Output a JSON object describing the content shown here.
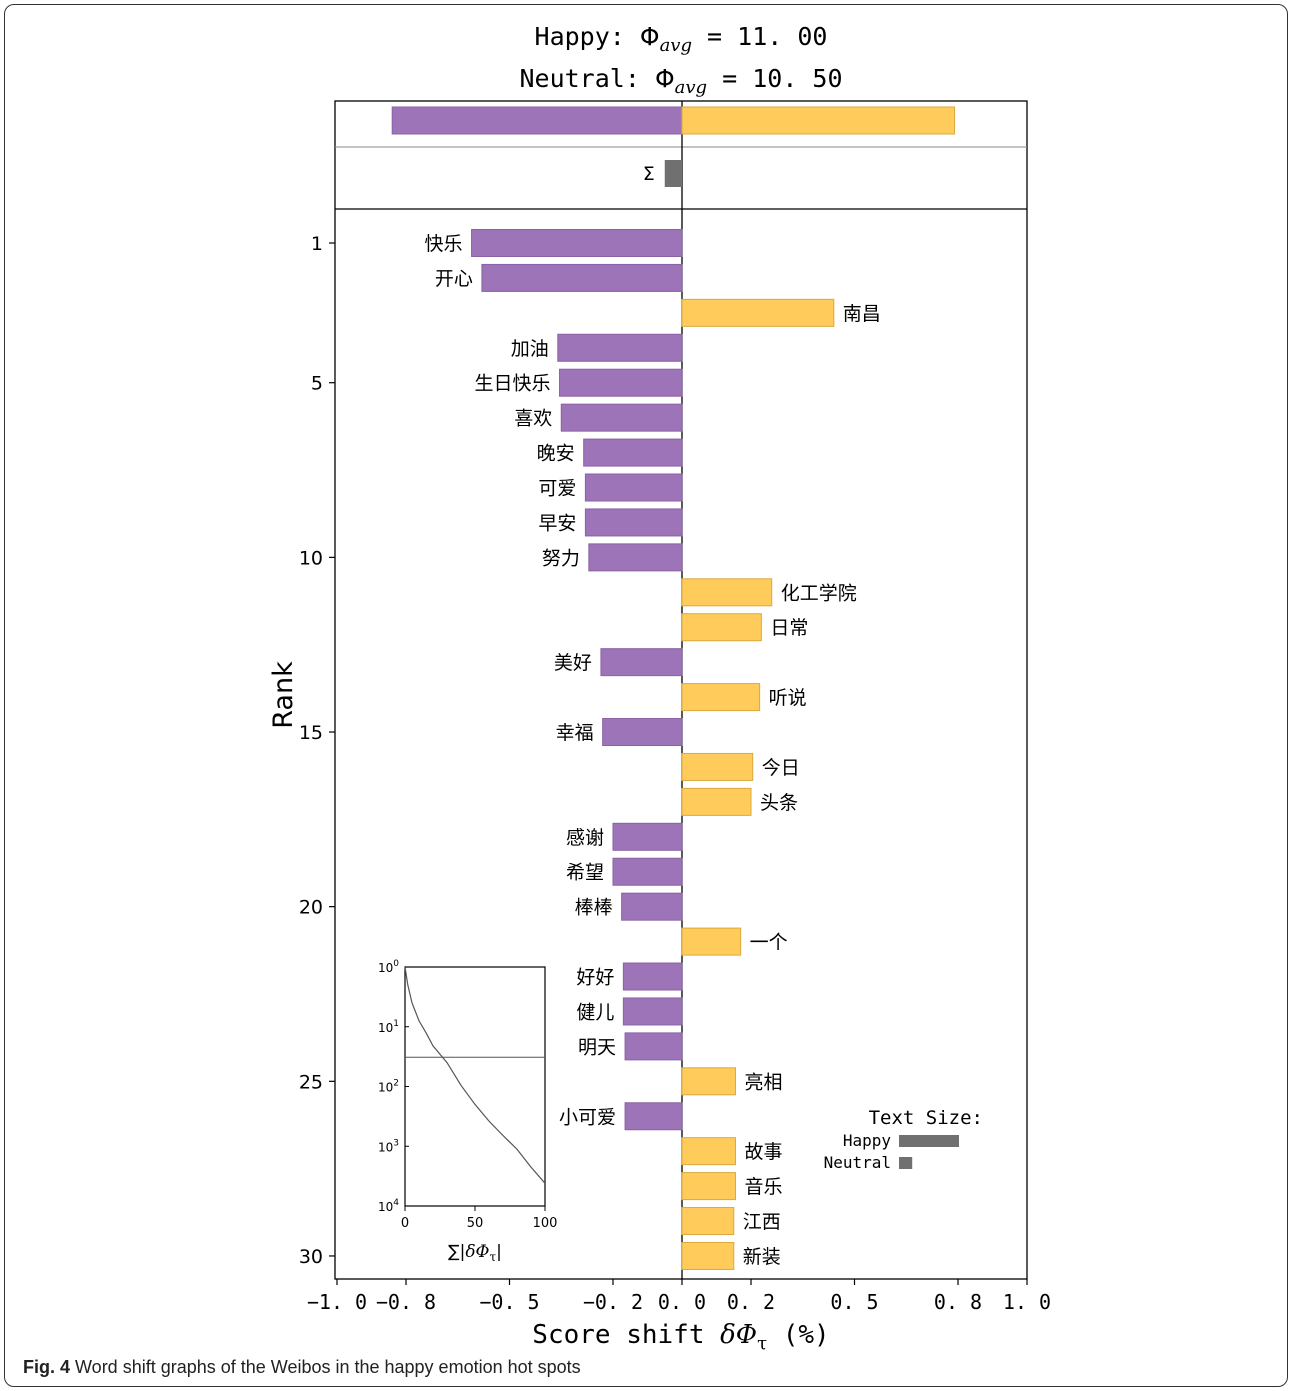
{
  "title_line1": {
    "prefix": "Happy:",
    "phi": "Φ",
    "sub": "avg",
    "eq": "= 11. 00"
  },
  "title_line2": {
    "prefix": "Neutral:",
    "phi": "Φ",
    "sub": "avg",
    "eq": "= 10. 50"
  },
  "caption": {
    "label": "Fig. 4",
    "text": " Word shift graphs of the Weibos in the happy emotion hot spots"
  },
  "colors": {
    "negative": "#9e74b8",
    "positive": "#ffcc5c",
    "sum": "#707070"
  },
  "chart_data": {
    "type": "bar",
    "orientation": "horizontal",
    "xlabel": "Score shift δΦτ (%)",
    "xlabel_parts": {
      "pre": "Score shift ",
      "sym": "δΦ",
      "sub": "τ",
      "post": " (%)"
    },
    "ylabel": "Rank",
    "xlim": [
      -1.0,
      1.0
    ],
    "xticks": [
      -1.0,
      -0.8,
      -0.5,
      -0.2,
      0.0,
      0.2,
      0.5,
      0.8,
      1.0
    ],
    "xtick_labels": [
      "−1. 0",
      "−0. 8",
      "−0. 5",
      "−0. 2",
      "0. 0",
      "0. 2",
      "0. 5",
      "0. 8",
      "1. 0"
    ],
    "yticks": [
      1,
      5,
      10,
      15,
      20,
      25,
      30
    ],
    "totals": {
      "negative": -0.84,
      "positive": 0.79
    },
    "sum": {
      "label": "Σ",
      "value": -0.05
    },
    "words": [
      {
        "rank": 1,
        "word": "快乐",
        "value": -0.61
      },
      {
        "rank": 2,
        "word": "开心",
        "value": -0.58
      },
      {
        "rank": 3,
        "word": "南昌",
        "value": 0.44
      },
      {
        "rank": 4,
        "word": "加油",
        "value": -0.36
      },
      {
        "rank": 5,
        "word": "生日快乐",
        "value": -0.355
      },
      {
        "rank": 6,
        "word": "喜欢",
        "value": -0.35
      },
      {
        "rank": 7,
        "word": "晚安",
        "value": -0.285
      },
      {
        "rank": 8,
        "word": "可爱",
        "value": -0.28
      },
      {
        "rank": 9,
        "word": "早安",
        "value": -0.28
      },
      {
        "rank": 10,
        "word": "努力",
        "value": -0.27
      },
      {
        "rank": 11,
        "word": "化工学院",
        "value": 0.26
      },
      {
        "rank": 12,
        "word": "日常",
        "value": 0.23
      },
      {
        "rank": 13,
        "word": "美好",
        "value": -0.235
      },
      {
        "rank": 14,
        "word": "听说",
        "value": 0.225
      },
      {
        "rank": 15,
        "word": "幸福",
        "value": -0.23
      },
      {
        "rank": 16,
        "word": "今日",
        "value": 0.205
      },
      {
        "rank": 17,
        "word": "头条",
        "value": 0.2
      },
      {
        "rank": 18,
        "word": "感谢",
        "value": -0.2
      },
      {
        "rank": 19,
        "word": "希望",
        "value": -0.2
      },
      {
        "rank": 20,
        "word": "棒棒",
        "value": -0.175
      },
      {
        "rank": 21,
        "word": "一个",
        "value": 0.17
      },
      {
        "rank": 22,
        "word": "好好",
        "value": -0.17
      },
      {
        "rank": 23,
        "word": "健儿",
        "value": -0.17
      },
      {
        "rank": 24,
        "word": "明天",
        "value": -0.165
      },
      {
        "rank": 25,
        "word": "亮相",
        "value": 0.155
      },
      {
        "rank": 26,
        "word": "小可爱",
        "value": -0.165
      },
      {
        "rank": 27,
        "word": "故事",
        "value": 0.155
      },
      {
        "rank": 28,
        "word": "音乐",
        "value": 0.155
      },
      {
        "rank": 29,
        "word": "江西",
        "value": 0.15
      },
      {
        "rank": 30,
        "word": "新装",
        "value": 0.15
      }
    ],
    "legend": {
      "title": "Text Size:",
      "items": [
        {
          "label": "Happy",
          "relative_size": 1.0
        },
        {
          "label": "Neutral",
          "relative_size": 0.22
        }
      ]
    },
    "inset": {
      "type": "line",
      "xlabel": "∑|δΦτ|",
      "xlabel_parts": {
        "pre": "∑|",
        "sym": "δΦ",
        "sub": "τ",
        "post": "|"
      },
      "xticks": [
        0,
        50,
        100
      ],
      "ytick_labels": [
        {
          "base": "10",
          "exp": "0"
        },
        {
          "base": "10",
          "exp": "1"
        },
        {
          "base": "10",
          "exp": "2"
        },
        {
          "base": "10",
          "exp": "3"
        },
        {
          "base": "10",
          "exp": "4"
        }
      ],
      "y_scale": "log",
      "cutoff_rank": 30,
      "curve": [
        [
          0,
          0
        ],
        [
          2,
          0.3
        ],
        [
          5,
          0.6
        ],
        [
          10,
          0.9
        ],
        [
          15,
          1.1
        ],
        [
          20,
          1.32
        ],
        [
          30,
          1.6
        ],
        [
          40,
          1.98
        ],
        [
          50,
          2.3
        ],
        [
          60,
          2.58
        ],
        [
          70,
          2.82
        ],
        [
          80,
          3.05
        ],
        [
          90,
          3.35
        ],
        [
          100,
          3.62
        ]
      ]
    }
  }
}
